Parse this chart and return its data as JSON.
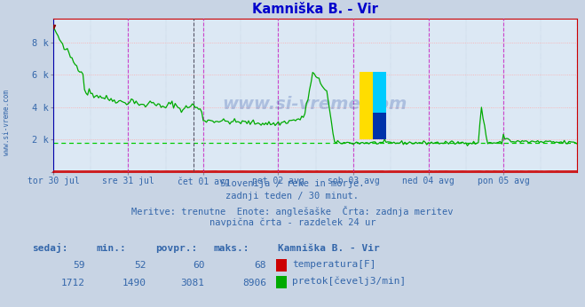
{
  "title": "Kamniška B. - Vir",
  "bg_color": "#c8d4e4",
  "plot_bg_color": "#dce8f4",
  "title_color": "#0000cc",
  "axis_label_color": "#3366aa",
  "grid_h_color": "#ffaaaa",
  "grid_v_magenta": "#cc44cc",
  "grid_v_dark": "#555566",
  "avg_line_color": "#00cc00",
  "temp_color": "#cc0000",
  "flow_color": "#00aa00",
  "border_h_color": "#cc0000",
  "border_v_color": "#0000aa",
  "xticklabels": [
    "tor 30 jul",
    "sre 31 jul",
    "čet 01 avg",
    "pet 02 avg",
    "sob 03 avg",
    "ned 04 avg",
    "pon 05 avg"
  ],
  "ytick_vals": [
    0,
    2000,
    4000,
    6000,
    8000
  ],
  "yticklabels": [
    "",
    "2 k",
    "4 k",
    "6 k",
    "8 k"
  ],
  "ylim": [
    0,
    9500
  ],
  "n_points": 336,
  "avg_flow": 1800,
  "subtitle_lines": [
    "Slovenija / reke in morje.",
    "zadnji teden / 30 minut.",
    "Meritve: trenutne  Enote: anglešaške  Črta: zadnja meritev",
    "navpična črta - razdelek 24 ur"
  ],
  "stats_headers": [
    "sedaj:",
    "min.:",
    "povpr.:",
    "maks.:"
  ],
  "stats_temp": [
    59,
    52,
    60,
    68
  ],
  "stats_flow": [
    1712,
    1490,
    3081,
    8906
  ],
  "station_name": "Kamniška B. - Vir",
  "legend_temp": "temperatura[F]",
  "legend_flow": "pretok[čevelj3/min]",
  "watermark_plot": "www.si-vreme.com",
  "watermark_side": "www.si-vreme.com",
  "logo_yellow": "#ffdd00",
  "logo_cyan": "#00ccff",
  "logo_blue": "#0033aa"
}
